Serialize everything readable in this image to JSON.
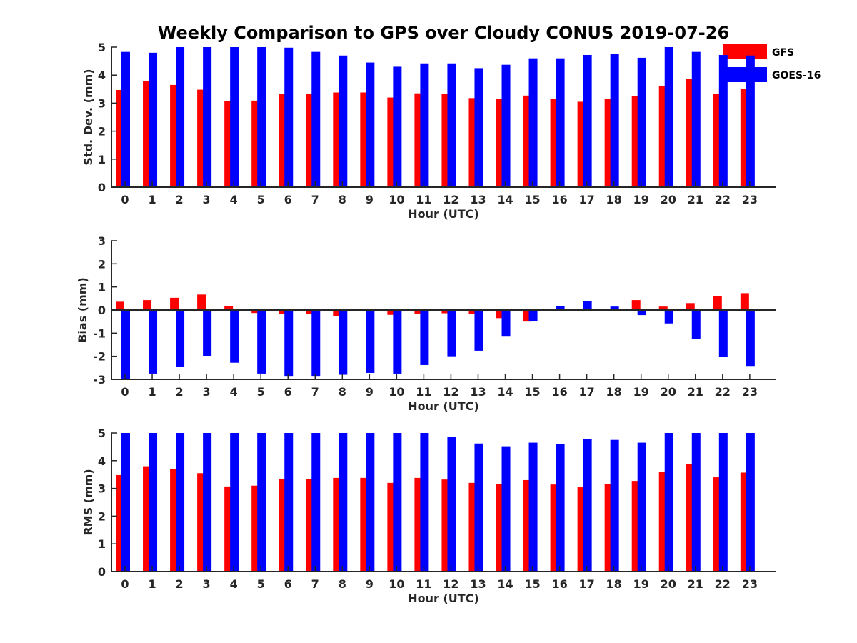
{
  "title": "Weekly Comparison to GPS over Cloudy CONUS 2019-07-26",
  "colors": {
    "GFS": "#ff0000",
    "GOES-16": "#0000ff",
    "axis": "#262626"
  },
  "legend": {
    "items": [
      "GFS",
      "GOES-16"
    ],
    "placement": "top-right"
  },
  "chart_data": [
    {
      "type": "bar",
      "ylabel": "Std. Dev. (mm)",
      "xlabel": "Hour (UTC)",
      "ylim": [
        0,
        5
      ],
      "yticks": [
        0,
        1,
        2,
        3,
        4,
        5
      ],
      "categories": [
        "0",
        "1",
        "2",
        "3",
        "4",
        "5",
        "6",
        "7",
        "8",
        "9",
        "10",
        "11",
        "12",
        "13",
        "14",
        "15",
        "16",
        "17",
        "18",
        "19",
        "20",
        "21",
        "22",
        "23"
      ],
      "series": [
        {
          "name": "GFS",
          "values": [
            3.47,
            3.78,
            3.65,
            3.48,
            3.07,
            3.09,
            3.32,
            3.32,
            3.38,
            3.38,
            3.2,
            3.35,
            3.32,
            3.18,
            3.15,
            3.27,
            3.15,
            3.05,
            3.15,
            3.25,
            3.6,
            3.86,
            3.32,
            3.5
          ]
        },
        {
          "name": "GOES-16",
          "values": [
            4.83,
            4.8,
            5.0,
            5.0,
            5.0,
            5.0,
            4.98,
            4.83,
            4.7,
            4.45,
            4.3,
            4.42,
            4.42,
            4.25,
            4.37,
            4.6,
            4.6,
            4.72,
            4.75,
            4.62,
            5.0,
            4.83,
            4.72,
            4.7
          ]
        }
      ]
    },
    {
      "type": "bar",
      "ylabel": "Bias (mm)",
      "xlabel": "Hour (UTC)",
      "ylim": [
        -3,
        3
      ],
      "yticks": [
        -3,
        -2,
        -1,
        0,
        1,
        2,
        3
      ],
      "categories": [
        "0",
        "1",
        "2",
        "3",
        "4",
        "5",
        "6",
        "7",
        "8",
        "9",
        "10",
        "11",
        "12",
        "13",
        "14",
        "15",
        "16",
        "17",
        "18",
        "19",
        "20",
        "21",
        "22",
        "23"
      ],
      "series": [
        {
          "name": "GFS",
          "values": [
            0.36,
            0.43,
            0.53,
            0.67,
            0.18,
            -0.13,
            -0.18,
            -0.18,
            -0.26,
            -0.03,
            -0.21,
            -0.18,
            -0.14,
            -0.18,
            -0.35,
            -0.5,
            0.02,
            -0.03,
            0.06,
            0.43,
            0.15,
            0.3,
            0.61,
            0.73
          ]
        },
        {
          "name": "GOES-16",
          "values": [
            -3.0,
            -2.75,
            -2.45,
            -1.98,
            -2.28,
            -2.75,
            -2.85,
            -2.85,
            -2.8,
            -2.72,
            -2.75,
            -2.38,
            -2.0,
            -1.76,
            -1.12,
            -0.48,
            0.18,
            0.4,
            0.15,
            -0.22,
            -0.58,
            -1.26,
            -2.03,
            -2.42
          ]
        }
      ]
    },
    {
      "type": "bar",
      "ylabel": "RMS (mm)",
      "xlabel": "Hour (UTC)",
      "ylim": [
        0,
        5
      ],
      "yticks": [
        0,
        1,
        2,
        3,
        4,
        5
      ],
      "categories": [
        "0",
        "1",
        "2",
        "3",
        "4",
        "5",
        "6",
        "7",
        "8",
        "9",
        "10",
        "11",
        "12",
        "13",
        "14",
        "15",
        "16",
        "17",
        "18",
        "19",
        "20",
        "21",
        "22",
        "23"
      ],
      "series": [
        {
          "name": "GFS",
          "values": [
            3.48,
            3.8,
            3.7,
            3.55,
            3.07,
            3.1,
            3.34,
            3.34,
            3.38,
            3.38,
            3.2,
            3.38,
            3.32,
            3.2,
            3.16,
            3.3,
            3.14,
            3.04,
            3.15,
            3.27,
            3.6,
            3.88,
            3.4,
            3.57
          ]
        },
        {
          "name": "GOES-16",
          "values": [
            5.0,
            5.0,
            5.0,
            5.0,
            5.0,
            5.0,
            5.0,
            5.0,
            5.0,
            5.0,
            5.0,
            5.0,
            4.86,
            4.62,
            4.52,
            4.65,
            4.6,
            4.78,
            4.75,
            4.65,
            5.0,
            5.0,
            5.0,
            5.0
          ]
        }
      ]
    }
  ]
}
